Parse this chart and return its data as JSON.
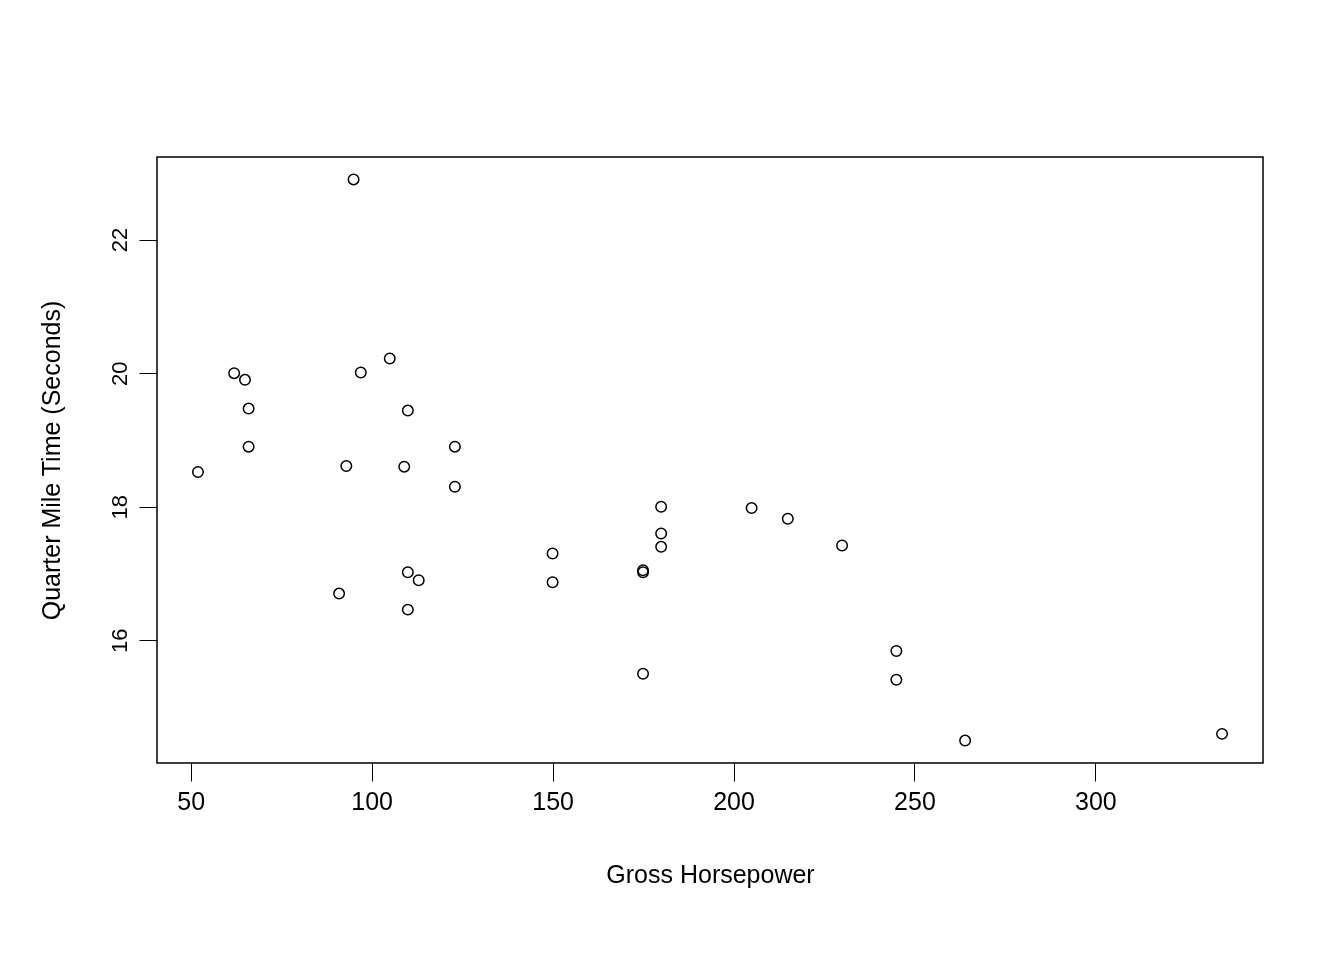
{
  "chart_data": {
    "type": "scatter",
    "xlabel": "Gross Horsepower",
    "ylabel": "Quarter Mile Time (Seconds)",
    "x": [
      110,
      110,
      93,
      110,
      175,
      105,
      245,
      62,
      95,
      123,
      123,
      180,
      180,
      180,
      205,
      215,
      230,
      66,
      52,
      65,
      97,
      150,
      150,
      245,
      175,
      66,
      91,
      113,
      264,
      175,
      335,
      109
    ],
    "series": [
      {
        "color": "#000000",
        "values": [
          16.46,
          17.02,
          18.61,
          19.44,
          17.02,
          20.22,
          15.84,
          20.0,
          22.9,
          18.3,
          18.9,
          17.4,
          17.6,
          18.0,
          17.98,
          17.82,
          17.42,
          19.47,
          18.52,
          19.9,
          20.01,
          16.87,
          17.3,
          15.41,
          17.05,
          18.9,
          16.7,
          16.9,
          14.5,
          15.5,
          14.6,
          18.6
        ]
      }
    ],
    "xlim": [
      40.68,
      346.32
    ],
    "ylim": [
      14.164,
      23.236
    ],
    "xticks": [
      50,
      100,
      150,
      200,
      250,
      300
    ],
    "yticks": [
      16,
      18,
      20,
      22
    ],
    "marker": "circle",
    "grid": false
  }
}
